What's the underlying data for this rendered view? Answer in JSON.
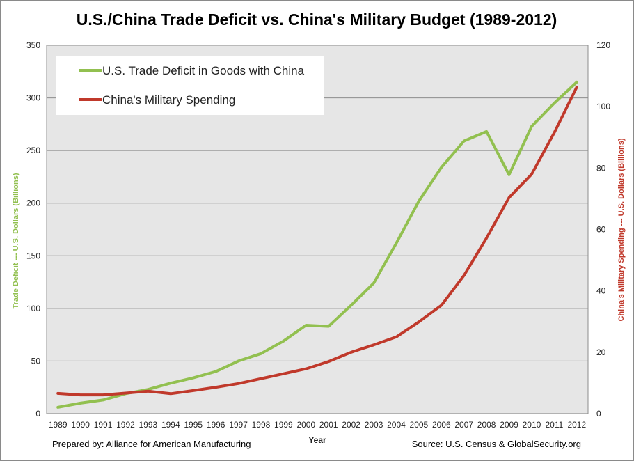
{
  "chart_data": {
    "type": "line",
    "title": "U.S./China Trade Deficit vs. China's Military Budget (1989-2012)",
    "xlabel": "Year",
    "ylabel_left": "Trade Deficit --- U.S. Dollars (Billions)",
    "ylabel_right": "China's Military Spending --- U.S. Dollars (Billions)",
    "categories": [
      "1989",
      "1990",
      "1991",
      "1992",
      "1993",
      "1994",
      "1995",
      "1996",
      "1997",
      "1998",
      "1999",
      "2000",
      "2001",
      "2002",
      "2003",
      "2004",
      "2005",
      "2006",
      "2007",
      "2008",
      "2009",
      "2010",
      "2011",
      "2012"
    ],
    "ylim_left": [
      0,
      350
    ],
    "yticks_left": [
      0,
      50,
      100,
      150,
      200,
      250,
      300,
      350
    ],
    "ylim_right": [
      0,
      120
    ],
    "yticks_right": [
      0,
      20,
      40,
      60,
      80,
      100,
      120
    ],
    "grid": true,
    "legend_position": "top-left",
    "series": [
      {
        "name": "U.S. Trade Deficit in Goods with China",
        "axis": "left",
        "color": "#92c050",
        "values": [
          6,
          10,
          13,
          19,
          23,
          29,
          34,
          40,
          50,
          57,
          69,
          84,
          83,
          103,
          124,
          162,
          202,
          234,
          259,
          268,
          227,
          273,
          295,
          315
        ]
      },
      {
        "name": "China's Military Spending",
        "axis": "right",
        "color": "#c0392b",
        "values": [
          6.6,
          6.1,
          6.1,
          6.7,
          7.3,
          6.5,
          7.5,
          8.6,
          9.8,
          11.4,
          13.0,
          14.6,
          17.0,
          20.0,
          22.4,
          25.0,
          29.9,
          35.3,
          45.0,
          57.2,
          70.4,
          78.0,
          91.5,
          106.4
        ]
      }
    ]
  },
  "footer": {
    "prepared_by": "Prepared by: Alliance for American Manufacturing",
    "source": "Source: U.S. Census & GlobalSecurity.org"
  }
}
